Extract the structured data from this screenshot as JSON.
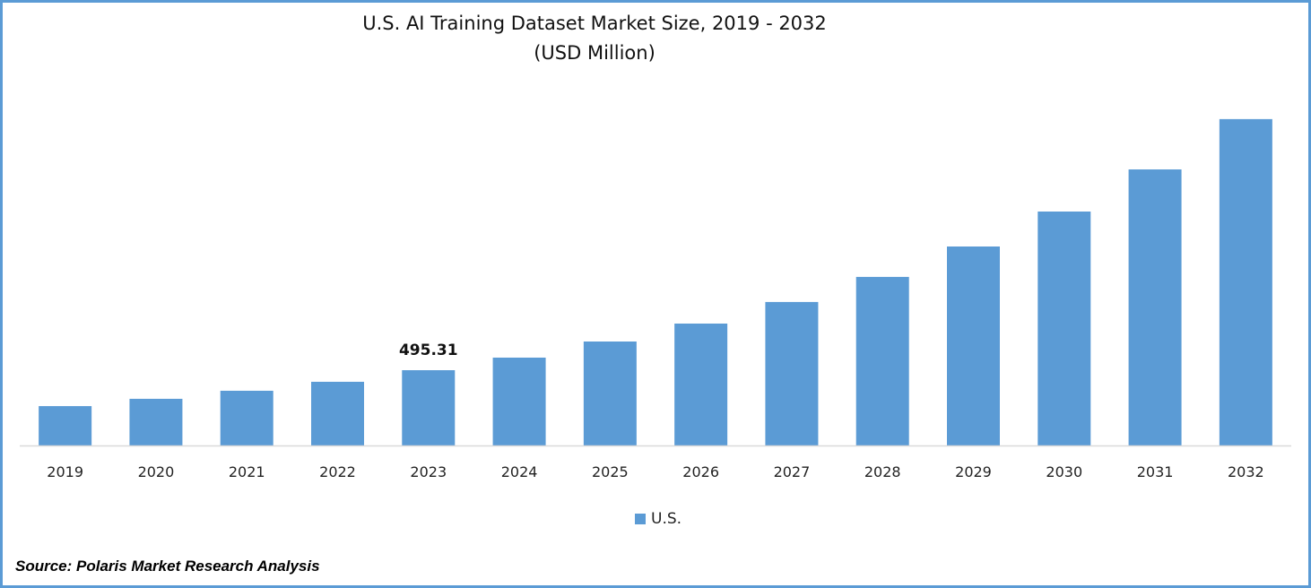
{
  "chart_data": {
    "type": "bar",
    "title": "U.S. AI Training Dataset Market Size, 2019 - 2032",
    "subtitle": "(USD Million)",
    "categories": [
      "2019",
      "2020",
      "2021",
      "2022",
      "2023",
      "2024",
      "2025",
      "2026",
      "2027",
      "2028",
      "2029",
      "2030",
      "2031",
      "2032"
    ],
    "series": [
      {
        "name": "U.S.",
        "color": "#5b9bd5",
        "values": [
          259,
          307,
          360,
          419,
          495.31,
          578,
          684,
          802,
          944,
          1109,
          1309,
          1539,
          1816,
          2147
        ]
      }
    ],
    "data_labels": [
      {
        "category": "2023",
        "text": "495.31"
      }
    ],
    "xlabel": "",
    "ylabel": "",
    "ylim": [
      0,
      2200
    ],
    "grid": false,
    "legend_position": "bottom",
    "y_axis_visible": false
  },
  "source": "Source: Polaris Market Research Analysis",
  "colors": {
    "border": "#5b9bd5",
    "bar": "#5b9bd5"
  }
}
